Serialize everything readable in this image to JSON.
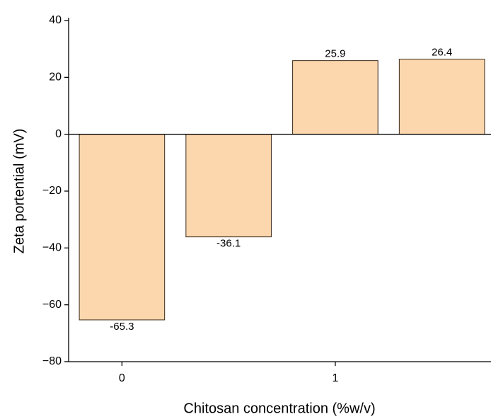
{
  "chart_data": {
    "type": "bar",
    "xlabel": "Chitosan concentration (%w/v)",
    "ylabel": "Zeta portential (mV)",
    "x": [
      0,
      0.5,
      1,
      1.5
    ],
    "values": [
      -65.3,
      -36.1,
      25.9,
      26.4
    ],
    "color": "#fcd3a5",
    "edgecolor": "#3a2a1a",
    "xlim": [
      -0.25,
      1.73
    ],
    "xticks": [
      0,
      1
    ],
    "ylim": [
      -80,
      40
    ],
    "yticks": [
      {
        "value": -80,
        "label": "−80"
      },
      {
        "value": -60,
        "label": "−60"
      },
      {
        "value": -40,
        "label": "−40"
      },
      {
        "value": -20,
        "label": "−20"
      },
      0,
      20,
      40
    ],
    "grid": false
  }
}
